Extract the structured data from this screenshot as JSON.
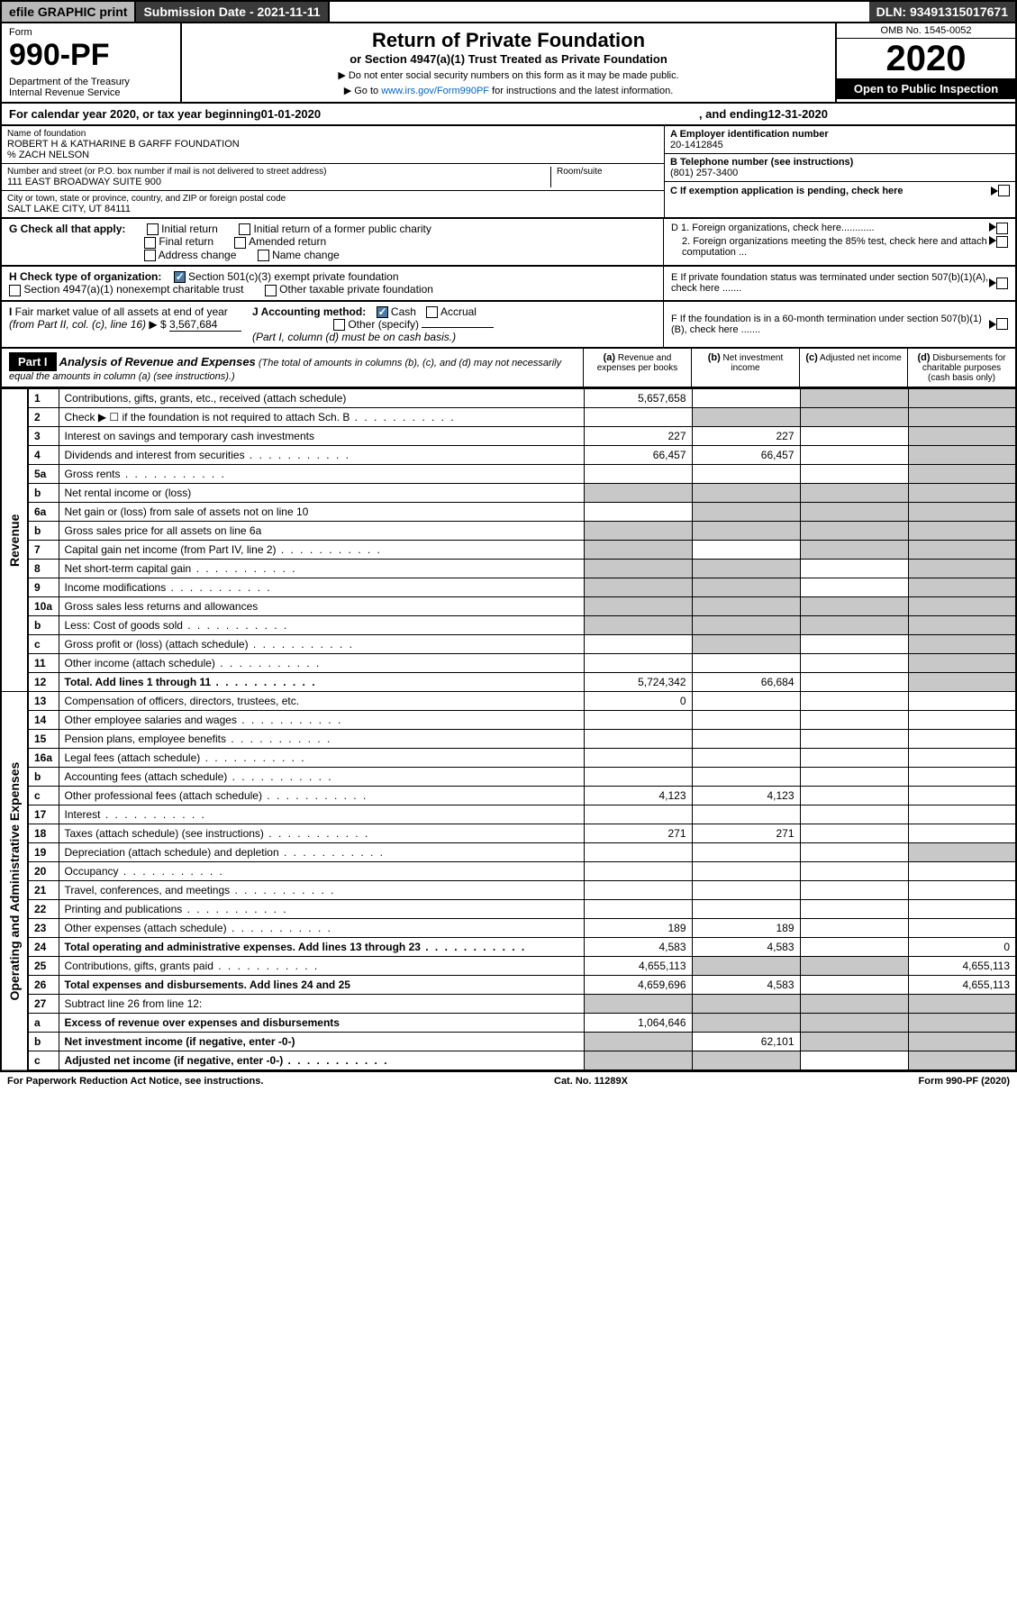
{
  "top": {
    "efile": "efile GRAPHIC print",
    "sub_date": "Submission Date - 2021-11-11",
    "dln": "DLN: 93491315017671"
  },
  "header": {
    "form_label": "Form",
    "form_num": "990-PF",
    "dept": "Department of the Treasury\nInternal Revenue Service",
    "title": "Return of Private Foundation",
    "subtitle": "or Section 4947(a)(1) Trust Treated as Private Foundation",
    "note1": "▶ Do not enter social security numbers on this form as it may be made public.",
    "note2": "▶ Go to www.irs.gov/Form990PF for instructions and the latest information.",
    "link_text": "www.irs.gov/Form990PF",
    "omb": "OMB No. 1545-0052",
    "year": "2020",
    "open": "Open to Public Inspection"
  },
  "cal_year": {
    "prefix": "For calendar year 2020, or tax year beginning ",
    "begin": "01-01-2020",
    "mid": ", and ending ",
    "end": "12-31-2020"
  },
  "entity": {
    "name_label": "Name of foundation",
    "name": "ROBERT H & KATHARINE B GARFF FOUNDATION",
    "care_of": "% ZACH NELSON",
    "addr_label": "Number and street (or P.O. box number if mail is not delivered to street address)",
    "addr": "111 EAST BROADWAY SUITE 900",
    "room_label": "Room/suite",
    "city_label": "City or town, state or province, country, and ZIP or foreign postal code",
    "city": "SALT LAKE CITY, UT  84111",
    "ein_label": "A Employer identification number",
    "ein": "20-1412845",
    "tel_label": "B Telephone number (see instructions)",
    "tel": "(801) 257-3400",
    "c_label": "C If exemption application is pending, check here",
    "d1": "D 1. Foreign organizations, check here............",
    "d2": "2. Foreign organizations meeting the 85% test, check here and attach computation ...",
    "e_label": "E If private foundation status was terminated under section 507(b)(1)(A), check here .......",
    "f_label": "F If the foundation is in a 60-month termination under section 507(b)(1)(B), check here ......."
  },
  "g": {
    "label": "G Check all that apply:",
    "opts": [
      "Initial return",
      "Initial return of a former public charity",
      "Final return",
      "Amended return",
      "Address change",
      "Name change"
    ]
  },
  "h": {
    "label": "H Check type of organization:",
    "opt1": "Section 501(c)(3) exempt private foundation",
    "opt2": "Section 4947(a)(1) nonexempt charitable trust",
    "opt3": "Other taxable private foundation"
  },
  "i": {
    "label": "I Fair market value of all assets at end of year (from Part II, col. (c), line 16) ▶ $",
    "value": "3,567,684"
  },
  "j": {
    "label": "J Accounting method:",
    "cash": "Cash",
    "accrual": "Accrual",
    "other": "Other (specify)",
    "note": "(Part I, column (d) must be on cash basis.)"
  },
  "part1": {
    "label": "Part I",
    "title": "Analysis of Revenue and Expenses",
    "sub": "(The total of amounts in columns (b), (c), and (d) may not necessarily equal the amounts in column (a) (see instructions).)",
    "col_a": "(a) Revenue and expenses per books",
    "col_b": "(b) Net investment income",
    "col_c": "(c) Adjusted net income",
    "col_d": "(d) Disbursements for charitable purposes (cash basis only)"
  },
  "sides": {
    "revenue": "Revenue",
    "opex": "Operating and Administrative Expenses"
  },
  "rows": [
    {
      "n": "1",
      "d": "Contributions, gifts, grants, etc., received (attach schedule)",
      "a": "5,657,658",
      "b": "",
      "c": "g",
      "dcol": "g"
    },
    {
      "n": "2",
      "d": "Check ▶ ☐ if the foundation is not required to attach Sch. B",
      "a": "",
      "b": "g",
      "c": "g",
      "dcol": "g",
      "dots": true
    },
    {
      "n": "3",
      "d": "Interest on savings and temporary cash investments",
      "a": "227",
      "b": "227",
      "c": "",
      "dcol": "g"
    },
    {
      "n": "4",
      "d": "Dividends and interest from securities",
      "a": "66,457",
      "b": "66,457",
      "c": "",
      "dcol": "g",
      "dots": true
    },
    {
      "n": "5a",
      "d": "Gross rents",
      "a": "",
      "b": "",
      "c": "",
      "dcol": "g",
      "dots": true
    },
    {
      "n": "b",
      "d": "Net rental income or (loss)",
      "a": "g",
      "b": "g",
      "c": "g",
      "dcol": "g"
    },
    {
      "n": "6a",
      "d": "Net gain or (loss) from sale of assets not on line 10",
      "a": "",
      "b": "g",
      "c": "g",
      "dcol": "g"
    },
    {
      "n": "b",
      "d": "Gross sales price for all assets on line 6a",
      "a": "g",
      "b": "g",
      "c": "g",
      "dcol": "g"
    },
    {
      "n": "7",
      "d": "Capital gain net income (from Part IV, line 2)",
      "a": "g",
      "b": "",
      "c": "g",
      "dcol": "g",
      "dots": true
    },
    {
      "n": "8",
      "d": "Net short-term capital gain",
      "a": "g",
      "b": "g",
      "c": "",
      "dcol": "g",
      "dots": true
    },
    {
      "n": "9",
      "d": "Income modifications",
      "a": "g",
      "b": "g",
      "c": "",
      "dcol": "g",
      "dots": true
    },
    {
      "n": "10a",
      "d": "Gross sales less returns and allowances",
      "a": "g",
      "b": "g",
      "c": "g",
      "dcol": "g"
    },
    {
      "n": "b",
      "d": "Less: Cost of goods sold",
      "a": "g",
      "b": "g",
      "c": "g",
      "dcol": "g",
      "dots": true
    },
    {
      "n": "c",
      "d": "Gross profit or (loss) (attach schedule)",
      "a": "",
      "b": "g",
      "c": "",
      "dcol": "g",
      "dots": true
    },
    {
      "n": "11",
      "d": "Other income (attach schedule)",
      "a": "",
      "b": "",
      "c": "",
      "dcol": "g",
      "dots": true
    },
    {
      "n": "12",
      "d": "Total. Add lines 1 through 11",
      "a": "5,724,342",
      "b": "66,684",
      "c": "",
      "dcol": "g",
      "bold": true,
      "dots": true
    },
    {
      "n": "13",
      "d": "Compensation of officers, directors, trustees, etc.",
      "a": "0",
      "b": "",
      "c": "",
      "dcol": ""
    },
    {
      "n": "14",
      "d": "Other employee salaries and wages",
      "a": "",
      "b": "",
      "c": "",
      "dcol": "",
      "dots": true
    },
    {
      "n": "15",
      "d": "Pension plans, employee benefits",
      "a": "",
      "b": "",
      "c": "",
      "dcol": "",
      "dots": true
    },
    {
      "n": "16a",
      "d": "Legal fees (attach schedule)",
      "a": "",
      "b": "",
      "c": "",
      "dcol": "",
      "dots": true
    },
    {
      "n": "b",
      "d": "Accounting fees (attach schedule)",
      "a": "",
      "b": "",
      "c": "",
      "dcol": "",
      "dots": true
    },
    {
      "n": "c",
      "d": "Other professional fees (attach schedule)",
      "a": "4,123",
      "b": "4,123",
      "c": "",
      "dcol": "",
      "dots": true
    },
    {
      "n": "17",
      "d": "Interest",
      "a": "",
      "b": "",
      "c": "",
      "dcol": "",
      "dots": true
    },
    {
      "n": "18",
      "d": "Taxes (attach schedule) (see instructions)",
      "a": "271",
      "b": "271",
      "c": "",
      "dcol": "",
      "dots": true
    },
    {
      "n": "19",
      "d": "Depreciation (attach schedule) and depletion",
      "a": "",
      "b": "",
      "c": "",
      "dcol": "g",
      "dots": true
    },
    {
      "n": "20",
      "d": "Occupancy",
      "a": "",
      "b": "",
      "c": "",
      "dcol": "",
      "dots": true
    },
    {
      "n": "21",
      "d": "Travel, conferences, and meetings",
      "a": "",
      "b": "",
      "c": "",
      "dcol": "",
      "dots": true
    },
    {
      "n": "22",
      "d": "Printing and publications",
      "a": "",
      "b": "",
      "c": "",
      "dcol": "",
      "dots": true
    },
    {
      "n": "23",
      "d": "Other expenses (attach schedule)",
      "a": "189",
      "b": "189",
      "c": "",
      "dcol": "",
      "dots": true
    },
    {
      "n": "24",
      "d": "Total operating and administrative expenses. Add lines 13 through 23",
      "a": "4,583",
      "b": "4,583",
      "c": "",
      "dcol": "0",
      "bold": true,
      "dots": true
    },
    {
      "n": "25",
      "d": "Contributions, gifts, grants paid",
      "a": "4,655,113",
      "b": "g",
      "c": "g",
      "dcol": "4,655,113",
      "dots": true
    },
    {
      "n": "26",
      "d": "Total expenses and disbursements. Add lines 24 and 25",
      "a": "4,659,696",
      "b": "4,583",
      "c": "",
      "dcol": "4,655,113",
      "bold": true
    },
    {
      "n": "27",
      "d": "Subtract line 26 from line 12:",
      "a": "g",
      "b": "g",
      "c": "g",
      "dcol": "g"
    },
    {
      "n": "a",
      "d": "Excess of revenue over expenses and disbursements",
      "a": "1,064,646",
      "b": "g",
      "c": "g",
      "dcol": "g",
      "bold": true
    },
    {
      "n": "b",
      "d": "Net investment income (if negative, enter -0-)",
      "a": "g",
      "b": "62,101",
      "c": "g",
      "dcol": "g",
      "bold": true
    },
    {
      "n": "c",
      "d": "Adjusted net income (if negative, enter -0-)",
      "a": "g",
      "b": "g",
      "c": "",
      "dcol": "g",
      "bold": true,
      "dots": true
    }
  ],
  "footer": {
    "left": "For Paperwork Reduction Act Notice, see instructions.",
    "mid": "Cat. No. 11289X",
    "right": "Form 990-PF (2020)"
  }
}
